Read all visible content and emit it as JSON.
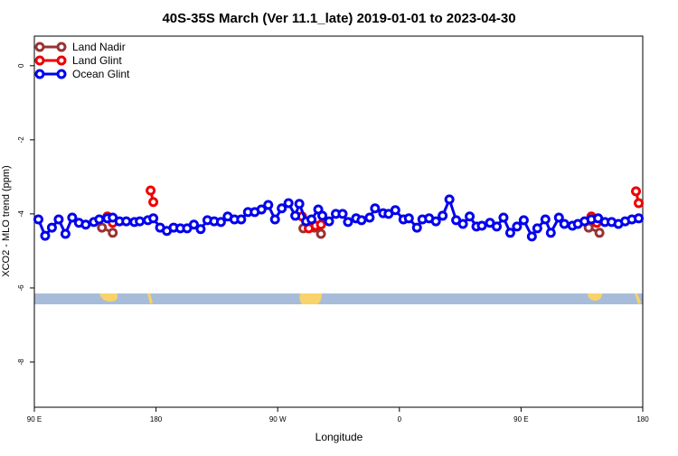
{
  "chart_data": {
    "type": "line",
    "title": "40S-35S March (Ver 11.1_late)   2019-01-01 to 2023-04-30",
    "x_label": "Longitude",
    "y_label": "XCO2 - MLO trend (ppm)",
    "xlim": [
      90,
      540
    ],
    "xticks": [
      {
        "value": 90,
        "label": "90 E"
      },
      {
        "value": 180,
        "label": "180"
      },
      {
        "value": 270,
        "label": "90 W"
      },
      {
        "value": 360,
        "label": "0"
      },
      {
        "value": 450,
        "label": "90 E"
      },
      {
        "value": 540,
        "label": "180"
      }
    ],
    "ylim": [
      -9.22,
      0.8
    ],
    "yticks": [
      0,
      -2,
      -4,
      -6,
      -8
    ],
    "legend": "top-left",
    "series": [
      {
        "name": "Land Nadir",
        "color": "#993333",
        "x": [
          140,
          148,
          220,
          289,
          297,
          302,
          400,
          500,
          508
        ],
        "values": [
          -4.37,
          -4.51,
          null,
          -4.39,
          -4.37,
          -4.54,
          null,
          -4.37,
          -4.51
        ]
      },
      {
        "name": "Land Glint",
        "color": "#ee0000",
        "x": [
          144,
          148,
          160,
          176,
          178,
          230,
          288,
          293,
          298,
          302,
          400,
          502,
          506,
          520,
          535,
          537
        ],
        "values": [
          -4.07,
          -4.24,
          null,
          -3.37,
          -3.68,
          null,
          -4.07,
          -4.39,
          -4.32,
          -4.29,
          null,
          -4.07,
          -4.24,
          null,
          -3.39,
          -3.71
        ]
      },
      {
        "name": "Ocean Glint",
        "color": "#0000ee",
        "x": [
          93,
          98,
          103,
          108,
          113,
          118,
          123,
          128,
          134,
          138,
          144,
          148,
          153,
          158,
          164,
          168,
          174,
          178,
          183,
          188,
          193,
          198,
          203,
          208,
          213,
          218,
          223,
          228,
          233,
          238,
          243,
          248,
          253,
          258,
          263,
          268,
          273,
          278,
          283,
          286,
          291,
          295,
          300,
          303,
          308,
          313,
          318,
          322,
          328,
          332,
          338,
          342,
          348,
          352,
          357,
          363,
          367,
          373,
          377,
          382,
          387,
          392,
          397,
          402,
          407,
          412,
          417,
          421,
          427,
          432,
          437,
          442,
          447,
          452,
          458,
          462,
          468,
          472,
          478,
          482,
          488,
          492,
          497,
          502,
          507,
          512,
          517,
          522,
          527,
          532,
          537
        ],
        "values": [
          -4.15,
          -4.59,
          -4.37,
          -4.15,
          -4.54,
          -4.1,
          -4.24,
          -4.29,
          -4.22,
          -4.15,
          -4.12,
          -4.1,
          -4.2,
          -4.2,
          -4.22,
          -4.2,
          -4.17,
          -4.12,
          -4.37,
          -4.46,
          -4.37,
          -4.39,
          -4.39,
          -4.29,
          -4.41,
          -4.17,
          -4.2,
          -4.22,
          -4.07,
          -4.15,
          -4.15,
          -3.95,
          -3.95,
          -3.88,
          -3.76,
          -4.15,
          -3.85,
          -3.71,
          -4.05,
          -3.73,
          -4.2,
          -4.15,
          -3.88,
          -4.05,
          -4.2,
          -4.0,
          -4.0,
          -4.22,
          -4.12,
          -4.17,
          -4.1,
          -3.85,
          -3.98,
          -4.0,
          -3.9,
          -4.15,
          -4.12,
          -4.37,
          -4.15,
          -4.12,
          -4.2,
          -4.05,
          -3.61,
          -4.17,
          -4.27,
          -4.07,
          -4.34,
          -4.32,
          -4.24,
          -4.34,
          -4.1,
          -4.51,
          -4.34,
          -4.17,
          -4.61,
          -4.39,
          -4.15,
          -4.51,
          -4.1,
          -4.27,
          -4.32,
          -4.27,
          -4.2,
          -4.15,
          -4.12,
          -4.22,
          -4.22,
          -4.27,
          -4.2,
          -4.15,
          -4.12
        ]
      }
    ]
  }
}
